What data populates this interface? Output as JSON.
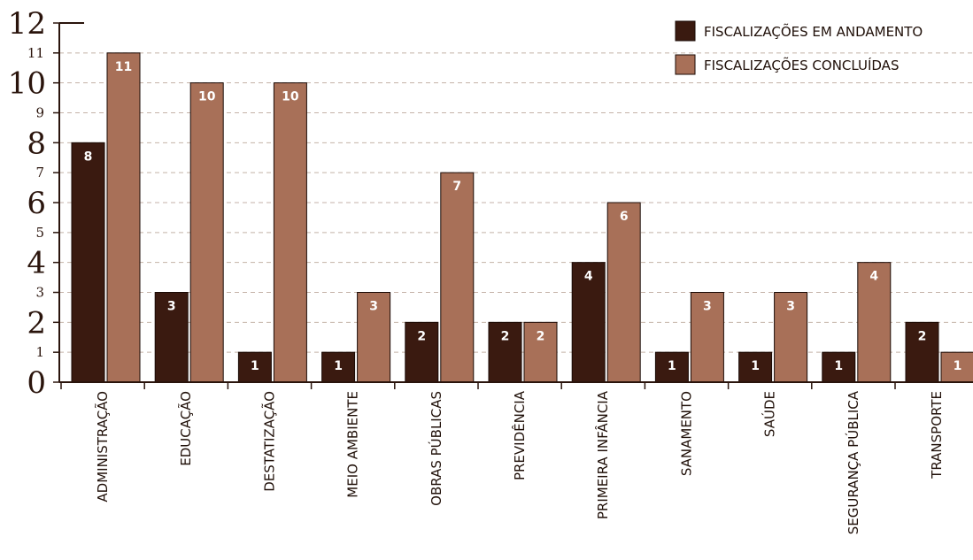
{
  "colors": {
    "andamento": "#3a1a10",
    "concluidas": "#a87058",
    "axis": "#2a140c",
    "grid": "#c4b2a8"
  },
  "legend": {
    "items": [
      {
        "label": "FISCALIZAÇÕES EM ANDAMENTO"
      },
      {
        "label": "FISCALIZAÇÕES CONCLUÍDAS"
      }
    ]
  },
  "chart_data": {
    "type": "bar",
    "title": "",
    "xlabel": "",
    "ylabel": "",
    "ylim": [
      0,
      12
    ],
    "yticks": [
      0,
      1,
      2,
      3,
      4,
      5,
      6,
      7,
      8,
      9,
      10,
      11,
      12
    ],
    "grid": true,
    "legend_position": "top-right",
    "categories": [
      "ADMINISTRAÇÃO",
      "EDUCAÇÃO",
      "DESTATIZAÇÃO",
      "MEIO AMBIENTE",
      "OBRAS PÚBLICAS",
      "PREVIDÊNCIA",
      "PRIMEIRA INFÂNCIA",
      "SANAMENTO",
      "SAÚDE",
      "SEGURANÇA PÚBLICA",
      "TRANSPORTE"
    ],
    "series": [
      {
        "name": "FISCALIZAÇÕES EM ANDAMENTO",
        "values": [
          8,
          3,
          1,
          1,
          2,
          2,
          4,
          1,
          1,
          1,
          2
        ]
      },
      {
        "name": "FISCALIZAÇÕES CONCLUÍDAS",
        "values": [
          11,
          10,
          10,
          3,
          7,
          2,
          6,
          3,
          3,
          4,
          1
        ]
      }
    ]
  }
}
